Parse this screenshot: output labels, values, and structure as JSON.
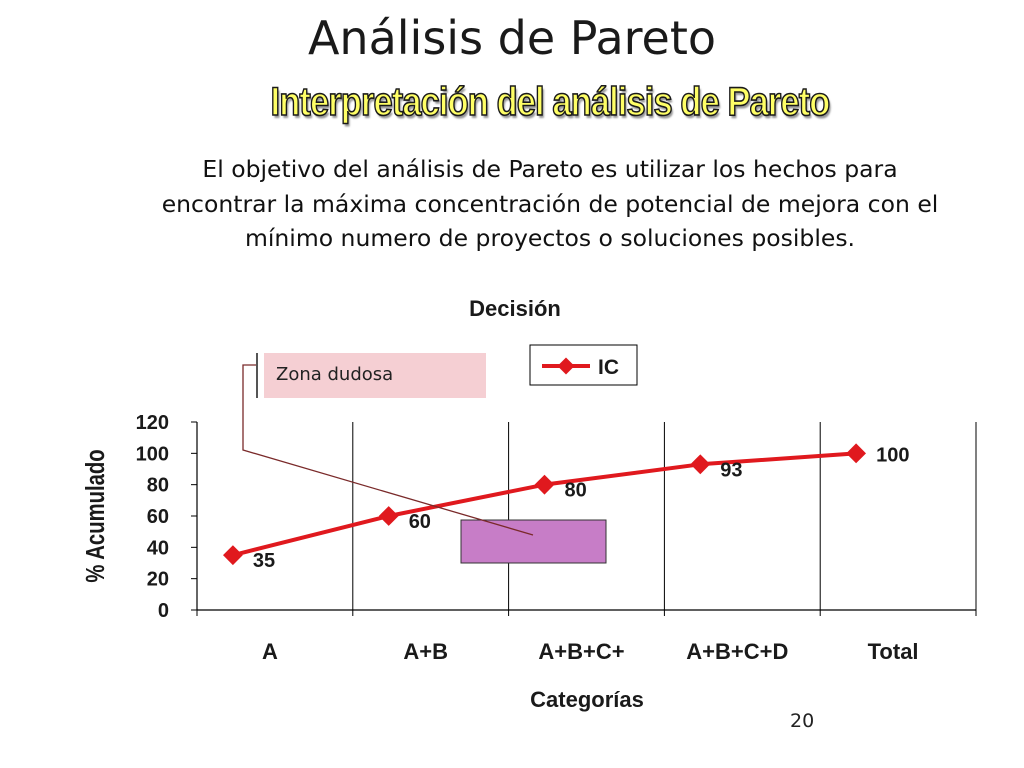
{
  "slide": {
    "title": "Análisis de Pareto",
    "subtitle": "Interpretación del análisis de Pareto",
    "body_lines": [
      "El objetivo del análisis de Pareto es utilizar los hechos para",
      "encontrar la máxima concentración de potencial de mejora con el",
      "mínimo numero de proyectos o soluciones posibles."
    ],
    "callout": "Zona dudosa",
    "page_number": "20"
  },
  "chart_data": {
    "type": "line",
    "title": "Decisión",
    "xlabel": "Categorías",
    "ylabel": "% Acumulado",
    "categories": [
      "A",
      "A+B",
      "A+B+C+",
      "A+B+C+D",
      "Total"
    ],
    "series": [
      {
        "name": "IC",
        "values": [
          35,
          60,
          80,
          93,
          100
        ],
        "color": "#e0191e"
      }
    ],
    "data_labels": [
      "35",
      "60",
      "80",
      "93",
      "100"
    ],
    "yticks": [
      "0",
      "20",
      "40",
      "60",
      "80",
      "100",
      "120"
    ],
    "ylim": [
      0,
      120
    ],
    "grid": "vertical",
    "legend_position": "top-right",
    "highlight_color": "#c77dc7"
  }
}
